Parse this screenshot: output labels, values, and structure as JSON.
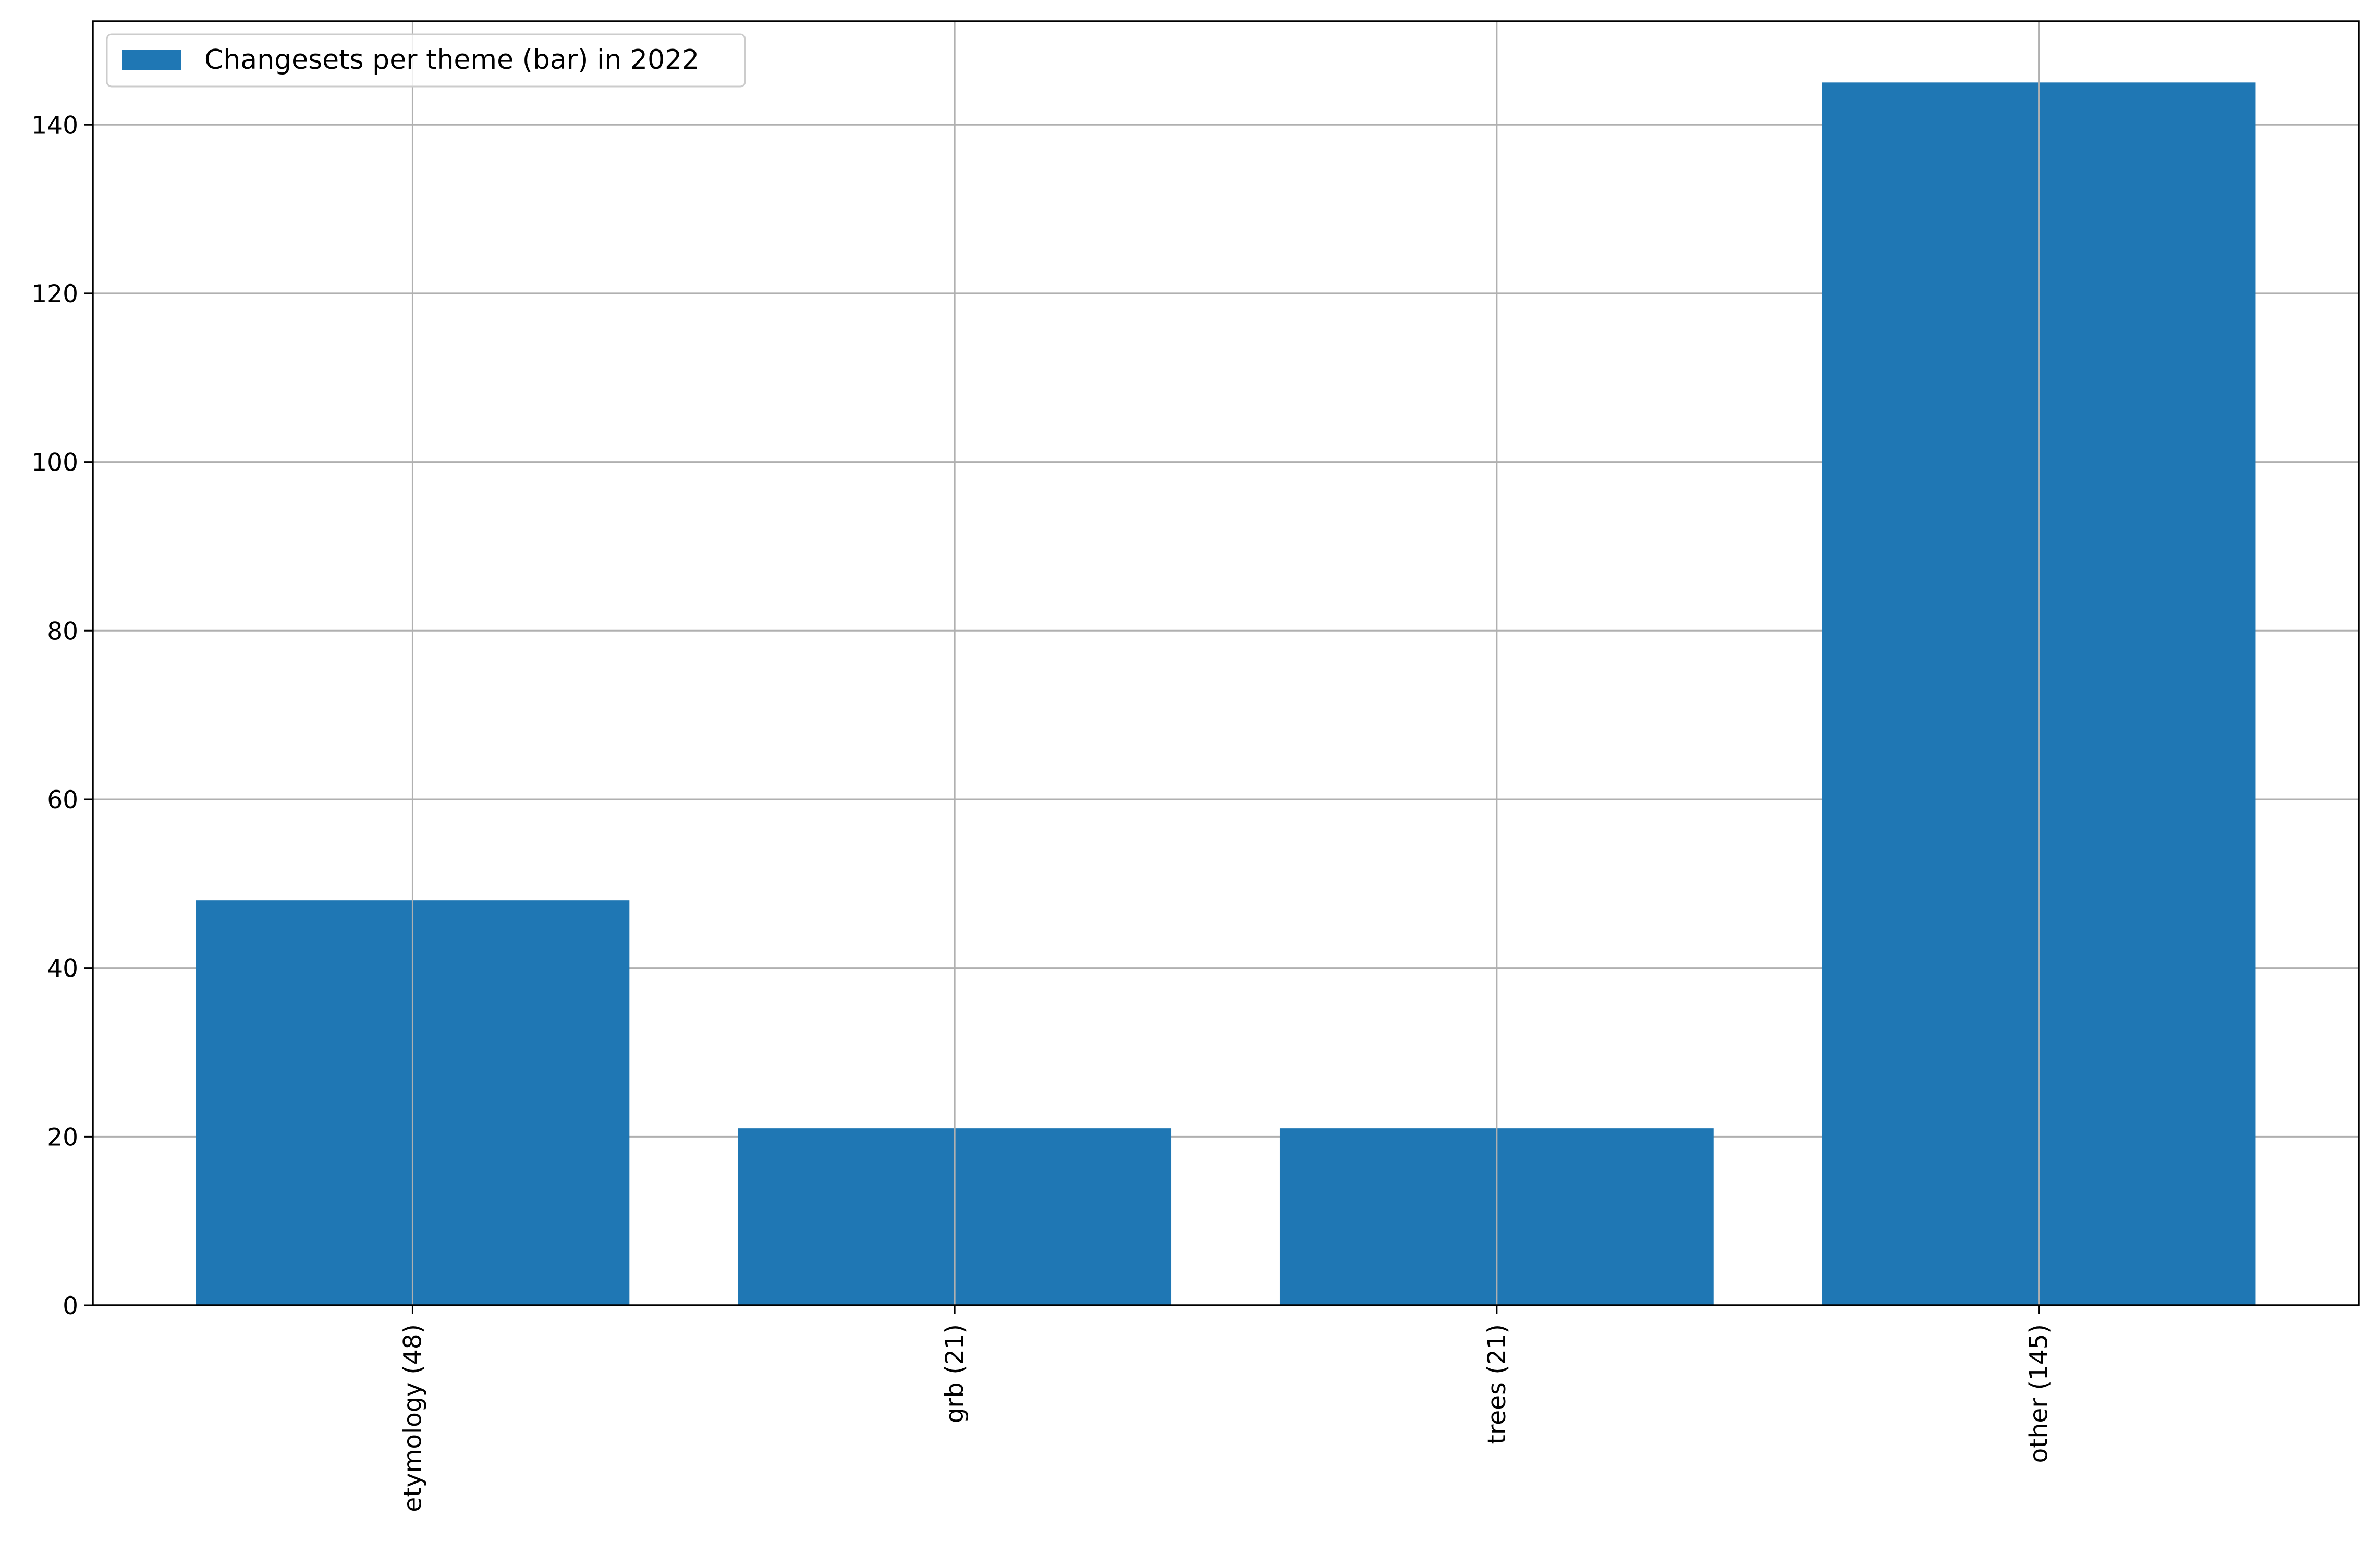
{
  "chart_data": {
    "type": "bar",
    "title": "",
    "xlabel": "",
    "ylabel": "",
    "categories": [
      "etymology (48)",
      "grb (21)",
      "trees (21)",
      "other (145)"
    ],
    "series": [
      {
        "name": "Changesets per theme (bar) in 2022",
        "values": [
          48,
          21,
          21,
          145
        ],
        "color": "#1f77b4"
      }
    ],
    "ylim": [
      0,
      152.25
    ],
    "yticks": [
      0,
      20,
      40,
      60,
      80,
      100,
      120,
      140
    ],
    "ytick_labels": [
      "0",
      "20",
      "40",
      "60",
      "80",
      "100",
      "120",
      "140"
    ],
    "grid": true,
    "legend_position": "upper-left",
    "x_tick_rotation": "vertical",
    "grid_color": "#b0b0b0",
    "bar_color": "#1f77b4"
  }
}
